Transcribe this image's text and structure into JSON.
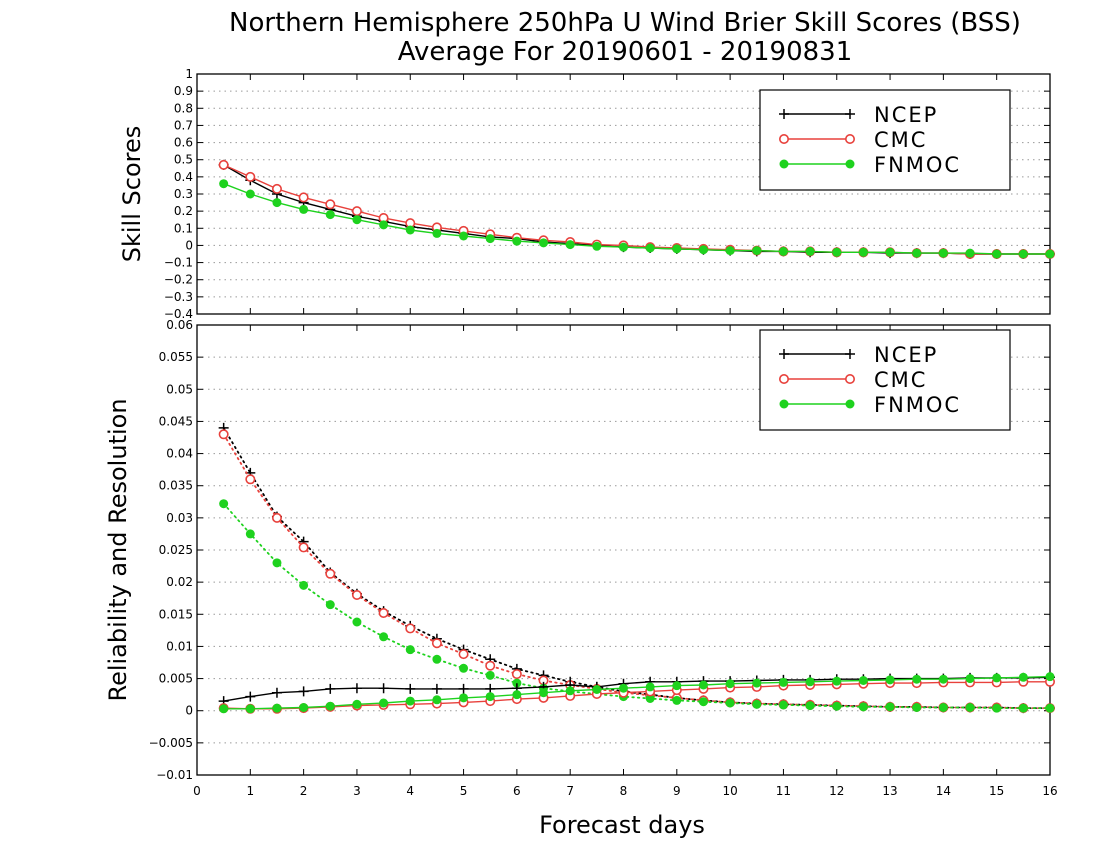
{
  "chart_data": {
    "title": "Northern Hemisphere 250hPa U Wind Brier Skill Scores (BSS)",
    "subtitle": "Average For 20190601 - 20190831",
    "xlabel": "Forecast days",
    "x_ticks": [
      "0",
      "1",
      "2",
      "3",
      "4",
      "5",
      "6",
      "7",
      "8",
      "9",
      "10",
      "11",
      "12",
      "13",
      "14",
      "15",
      "16"
    ],
    "xlim": [
      0,
      16
    ],
    "x": [
      0.5,
      1,
      1.5,
      2,
      2.5,
      3,
      3.5,
      4,
      4.5,
      5,
      5.5,
      6,
      6.5,
      7,
      7.5,
      8,
      8.5,
      9,
      9.5,
      10,
      10.5,
      11,
      11.5,
      12,
      12.5,
      13,
      13.5,
      14,
      14.5,
      15,
      15.5,
      16
    ],
    "colors": {
      "NCEP": "#000000",
      "CMC": "#e8413c",
      "FNMOC": "#1ed21e"
    },
    "panels": [
      {
        "type": "line",
        "ylabel": "Skill Scores",
        "ylim": [
          -0.4,
          1
        ],
        "y_ticks": [
          "−0.4",
          "−0.3",
          "−0.2",
          "−0.1",
          "0",
          "0.1",
          "0.2",
          "0.3",
          "0.4",
          "0.5",
          "0.6",
          "0.7",
          "0.8",
          "0.9",
          "1"
        ],
        "y_tick_values": [
          -0.4,
          -0.3,
          -0.2,
          -0.1,
          0,
          0.1,
          0.2,
          0.3,
          0.4,
          0.5,
          0.6,
          0.7,
          0.8,
          0.9,
          1
        ],
        "grid": true,
        "legend": {
          "position": "top-right",
          "entries": [
            "NCEP",
            "CMC",
            "FNMOC"
          ]
        },
        "series": [
          {
            "name": "NCEP",
            "values": [
              0.47,
              0.38,
              0.3,
              0.25,
              0.21,
              0.17,
              0.14,
              0.11,
              0.09,
              0.07,
              0.05,
              0.04,
              0.02,
              0.01,
              0.0,
              -0.01,
              -0.015,
              -0.02,
              -0.025,
              -0.03,
              -0.035,
              -0.035,
              -0.04,
              -0.04,
              -0.04,
              -0.045,
              -0.045,
              -0.045,
              -0.05,
              -0.05,
              -0.05,
              -0.05
            ]
          },
          {
            "name": "CMC",
            "values": [
              0.47,
              0.4,
              0.33,
              0.28,
              0.24,
              0.2,
              0.16,
              0.13,
              0.105,
              0.085,
              0.065,
              0.045,
              0.03,
              0.02,
              0.005,
              0.0,
              -0.01,
              -0.015,
              -0.02,
              -0.025,
              -0.03,
              -0.035,
              -0.035,
              -0.04,
              -0.04,
              -0.04,
              -0.045,
              -0.045,
              -0.05,
              -0.05,
              -0.05,
              -0.05
            ]
          },
          {
            "name": "FNMOC",
            "values": [
              0.36,
              0.3,
              0.25,
              0.21,
              0.18,
              0.15,
              0.12,
              0.09,
              0.07,
              0.055,
              0.04,
              0.025,
              0.015,
              0.005,
              -0.005,
              -0.01,
              -0.015,
              -0.02,
              -0.025,
              -0.03,
              -0.03,
              -0.035,
              -0.035,
              -0.04,
              -0.04,
              -0.04,
              -0.045,
              -0.045,
              -0.045,
              -0.05,
              -0.05,
              -0.05
            ]
          }
        ]
      },
      {
        "type": "line",
        "ylabel": "Reliability and Resolution",
        "ylim": [
          -0.01,
          0.06
        ],
        "y_ticks": [
          "−0.01",
          "−0.005",
          "0",
          "0.005",
          "0.01",
          "0.015",
          "0.02",
          "0.025",
          "0.03",
          "0.035",
          "0.04",
          "0.045",
          "0.05",
          "0.055",
          "0.06"
        ],
        "y_tick_values": [
          -0.01,
          -0.005,
          0,
          0.005,
          0.01,
          0.015,
          0.02,
          0.025,
          0.03,
          0.035,
          0.04,
          0.045,
          0.05,
          0.055,
          0.06
        ],
        "grid": true,
        "legend": {
          "position": "top-right",
          "entries": [
            "NCEP",
            "CMC",
            "FNMOC"
          ]
        },
        "series": [
          {
            "name": "NCEP",
            "kind": "reliability",
            "dotted": true,
            "values": [
              0.044,
              0.037,
              0.0302,
              0.0263,
              0.0215,
              0.0182,
              0.0155,
              0.0132,
              0.0112,
              0.0095,
              0.008,
              0.0065,
              0.0055,
              0.0045,
              0.0037,
              0.003,
              0.0025,
              0.002,
              0.0016,
              0.0013,
              0.0011,
              0.001,
              0.0009,
              0.0008,
              0.0007,
              0.0006,
              0.0006,
              0.0005,
              0.0005,
              0.0005,
              0.0004,
              0.0004
            ]
          },
          {
            "name": "CMC",
            "kind": "reliability",
            "dotted": true,
            "values": [
              0.043,
              0.036,
              0.03,
              0.0254,
              0.0213,
              0.018,
              0.0152,
              0.0128,
              0.0105,
              0.0088,
              0.007,
              0.0057,
              0.0047,
              0.004,
              0.0034,
              0.0028,
              0.0024,
              0.002,
              0.0016,
              0.0013,
              0.0011,
              0.001,
              0.0009,
              0.0008,
              0.0007,
              0.0006,
              0.0006,
              0.0005,
              0.0005,
              0.0005,
              0.0004,
              0.0004
            ]
          },
          {
            "name": "FNMOC",
            "kind": "reliability",
            "dotted": true,
            "values": [
              0.0322,
              0.0275,
              0.023,
              0.0195,
              0.0165,
              0.0138,
              0.0115,
              0.0095,
              0.008,
              0.0066,
              0.0055,
              0.0043,
              0.0035,
              0.003,
              0.0026,
              0.0022,
              0.0019,
              0.0016,
              0.0014,
              0.0012,
              0.001,
              0.0009,
              0.0008,
              0.0007,
              0.0006,
              0.0006,
              0.0005,
              0.0005,
              0.0005,
              0.0004,
              0.0004,
              0.0004
            ]
          },
          {
            "name": "NCEP",
            "kind": "resolution",
            "dotted": false,
            "values": [
              0.0015,
              0.0022,
              0.0028,
              0.003,
              0.0034,
              0.0035,
              0.0035,
              0.0034,
              0.0034,
              0.0034,
              0.0034,
              0.0035,
              0.0037,
              0.004,
              0.0037,
              0.0042,
              0.0045,
              0.0045,
              0.0046,
              0.0046,
              0.0047,
              0.0048,
              0.0048,
              0.0049,
              0.0049,
              0.005,
              0.005,
              0.005,
              0.0051,
              0.0051,
              0.0051,
              0.0052
            ]
          },
          {
            "name": "CMC",
            "kind": "resolution",
            "dotted": false,
            "values": [
              0.0004,
              0.0003,
              0.0003,
              0.0004,
              0.0006,
              0.0008,
              0.0009,
              0.001,
              0.0011,
              0.0013,
              0.0015,
              0.0018,
              0.002,
              0.0023,
              0.0026,
              0.0028,
              0.003,
              0.0032,
              0.0034,
              0.0036,
              0.0037,
              0.0039,
              0.004,
              0.0041,
              0.0042,
              0.0043,
              0.0043,
              0.0044,
              0.0044,
              0.0044,
              0.0045,
              0.0045
            ]
          },
          {
            "name": "FNMOC",
            "kind": "resolution",
            "dotted": false,
            "values": [
              0.0003,
              0.0003,
              0.0004,
              0.0005,
              0.0007,
              0.001,
              0.0012,
              0.0015,
              0.0017,
              0.002,
              0.0022,
              0.0025,
              0.0028,
              0.0031,
              0.0033,
              0.0035,
              0.0037,
              0.0039,
              0.004,
              0.0042,
              0.0043,
              0.0044,
              0.0045,
              0.0046,
              0.0047,
              0.0048,
              0.0049,
              0.0049,
              0.005,
              0.0051,
              0.0052,
              0.0053
            ]
          }
        ]
      }
    ]
  }
}
